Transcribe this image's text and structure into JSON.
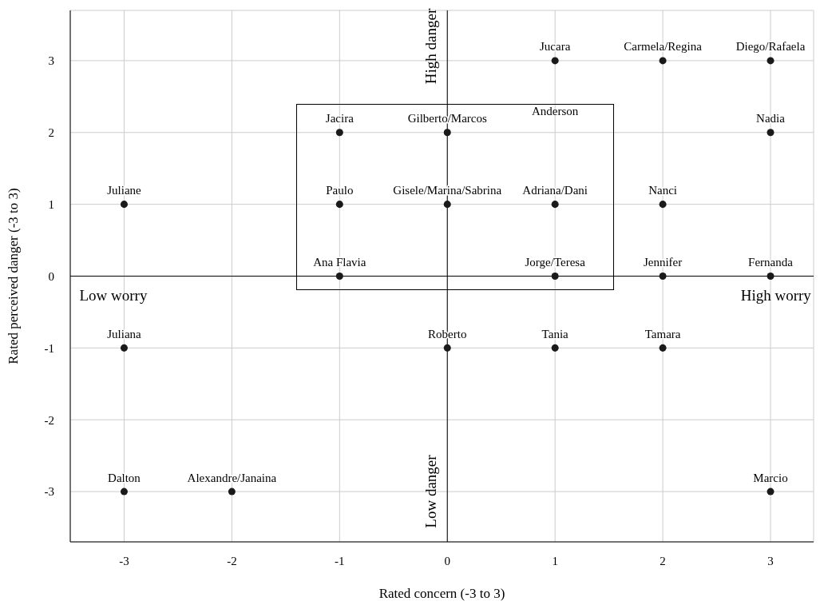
{
  "chart_data": {
    "type": "scatter",
    "xlabel": "Rated concern (-3 to 3)",
    "ylabel": "Rated perceived danger (-3 to 3)",
    "x": [
      1,
      2,
      3,
      3,
      -1,
      0,
      -3,
      -1,
      0,
      1,
      2,
      -1,
      1,
      2,
      3,
      -3,
      0,
      1,
      2,
      -3,
      -2,
      3
    ],
    "values": [
      3,
      3,
      3,
      2,
      2,
      2,
      1,
      1,
      1,
      1,
      1,
      0,
      0,
      0,
      0,
      -1,
      -1,
      -1,
      -1,
      -3,
      -3,
      -3
    ],
    "value_labels": [
      "Jucara",
      "Carmela/Regina",
      "Diego/Rafaela",
      "Nadia",
      "Jacira",
      "Gilberto/Marcos",
      "Juliane",
      "Paulo",
      "Gisele/Marina/Sabrina",
      "Adriana/Dani",
      "Nanci",
      "Ana Flavia",
      "Jorge/Teresa",
      "Jennifer",
      "Fernanda",
      "Juliana",
      "Roberto",
      "Tania",
      "Tamara",
      "Dalton",
      "Alexandre/Janaina",
      "Marcio"
    ],
    "color": "#1a1a1a",
    "marker": "circle",
    "xlim": [
      -3.5,
      3.4
    ],
    "xticks": [
      -3,
      -2,
      -1,
      0,
      1,
      2,
      3
    ],
    "ylim": [
      -3.7,
      3.7
    ],
    "yticks": [
      -3,
      -2,
      -1,
      0,
      1,
      2,
      3
    ],
    "grid": true,
    "annotations": [
      "Anderson",
      "High danger",
      "Low danger",
      "Low worry",
      "High worry"
    ]
  }
}
